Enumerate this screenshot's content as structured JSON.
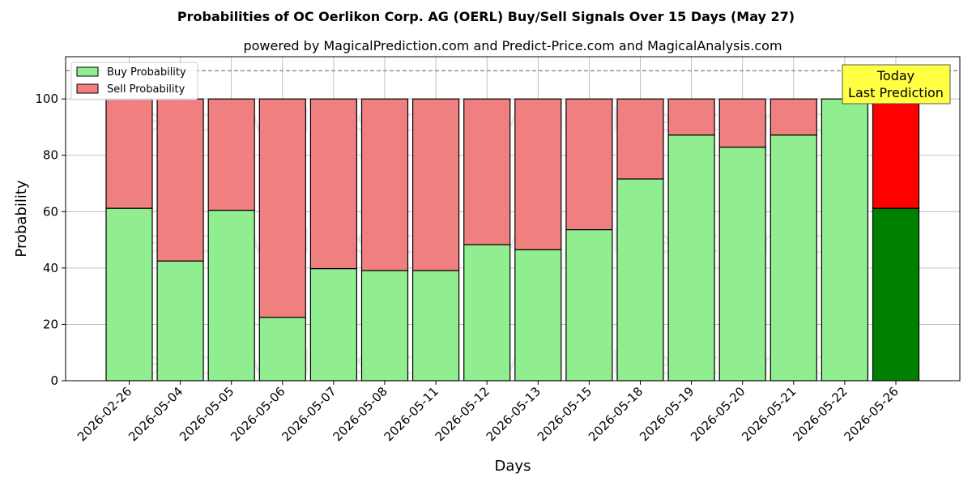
{
  "chart_data": {
    "type": "bar",
    "stacked": true,
    "title": "Probabilities of OC Oerlikon Corp. AG (OERL) Buy/Sell Signals Over 15 Days (May 27)",
    "subtitle": "powered by MagicalPrediction.com and Predict-Price.com and MagicalAnalysis.com",
    "xlabel": "Days",
    "ylabel": "Probability",
    "ylim": [
      0,
      115
    ],
    "yticks": [
      0,
      20,
      40,
      60,
      80,
      100
    ],
    "grid": true,
    "legend_position": "top-left",
    "reference_line": 110,
    "categories": [
      "2026-02-26",
      "2026-05-04",
      "2026-05-05",
      "2026-05-06",
      "2026-05-07",
      "2026-05-08",
      "2026-05-11",
      "2026-05-12",
      "2026-05-13",
      "2026-05-15",
      "2026-05-18",
      "2026-05-19",
      "2026-05-20",
      "2026-05-21",
      "2026-05-22",
      "2026-05-26"
    ],
    "series": [
      {
        "name": "Buy Probability",
        "color": "#90ee90",
        "highlight_color": "#008000",
        "values": [
          61.2,
          42.5,
          60.5,
          22.5,
          39.8,
          39.1,
          39.1,
          48.3,
          46.5,
          53.6,
          71.6,
          87.2,
          82.9,
          87.2,
          100,
          61.2
        ]
      },
      {
        "name": "Sell Probability",
        "color": "#f08080",
        "highlight_color": "#ff0000",
        "values": [
          38.8,
          57.5,
          39.5,
          77.5,
          60.2,
          60.9,
          60.9,
          51.7,
          53.5,
          46.4,
          28.4,
          12.8,
          17.1,
          12.8,
          0,
          38.8
        ]
      }
    ],
    "annotation": {
      "line1": "Today",
      "line2": "Last Prediction",
      "color": "#ffff44"
    },
    "watermarks": [
      "MagicalAnalysis.com",
      "MagicalPrediction.com"
    ]
  }
}
